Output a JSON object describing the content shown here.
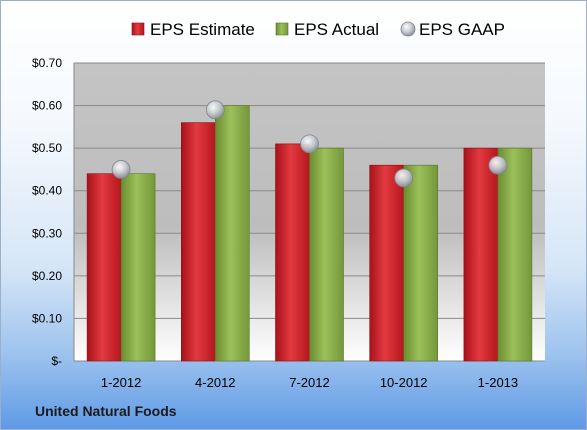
{
  "company": "United Natural Foods",
  "colors": {
    "estimate": "#d4202a",
    "actual": "#8cb04a",
    "gaap": "#c0c4cc"
  },
  "chart_data": {
    "type": "bar",
    "title": "",
    "xlabel": "",
    "ylabel": "",
    "categories": [
      "1-2012",
      "4-2012",
      "7-2012",
      "10-2012",
      "1-2013"
    ],
    "series": [
      {
        "name": "EPS Estimate",
        "kind": "bar",
        "values": [
          0.44,
          0.56,
          0.51,
          0.46,
          0.5
        ]
      },
      {
        "name": "EPS Actual",
        "kind": "bar",
        "values": [
          0.44,
          0.6,
          0.5,
          0.46,
          0.5
        ]
      },
      {
        "name": "EPS GAAP",
        "kind": "marker",
        "values": [
          0.45,
          0.59,
          0.51,
          0.43,
          0.46
        ]
      }
    ],
    "ylim": [
      0,
      0.7
    ],
    "yticks": [
      0,
      0.1,
      0.2,
      0.3,
      0.4,
      0.5,
      0.6,
      0.7
    ],
    "ytick_labels": [
      "$-",
      "$0.10",
      "$0.20",
      "$0.30",
      "$0.40",
      "$0.50",
      "$0.60",
      "$0.70"
    ],
    "legend_position": "top",
    "grid": true
  }
}
